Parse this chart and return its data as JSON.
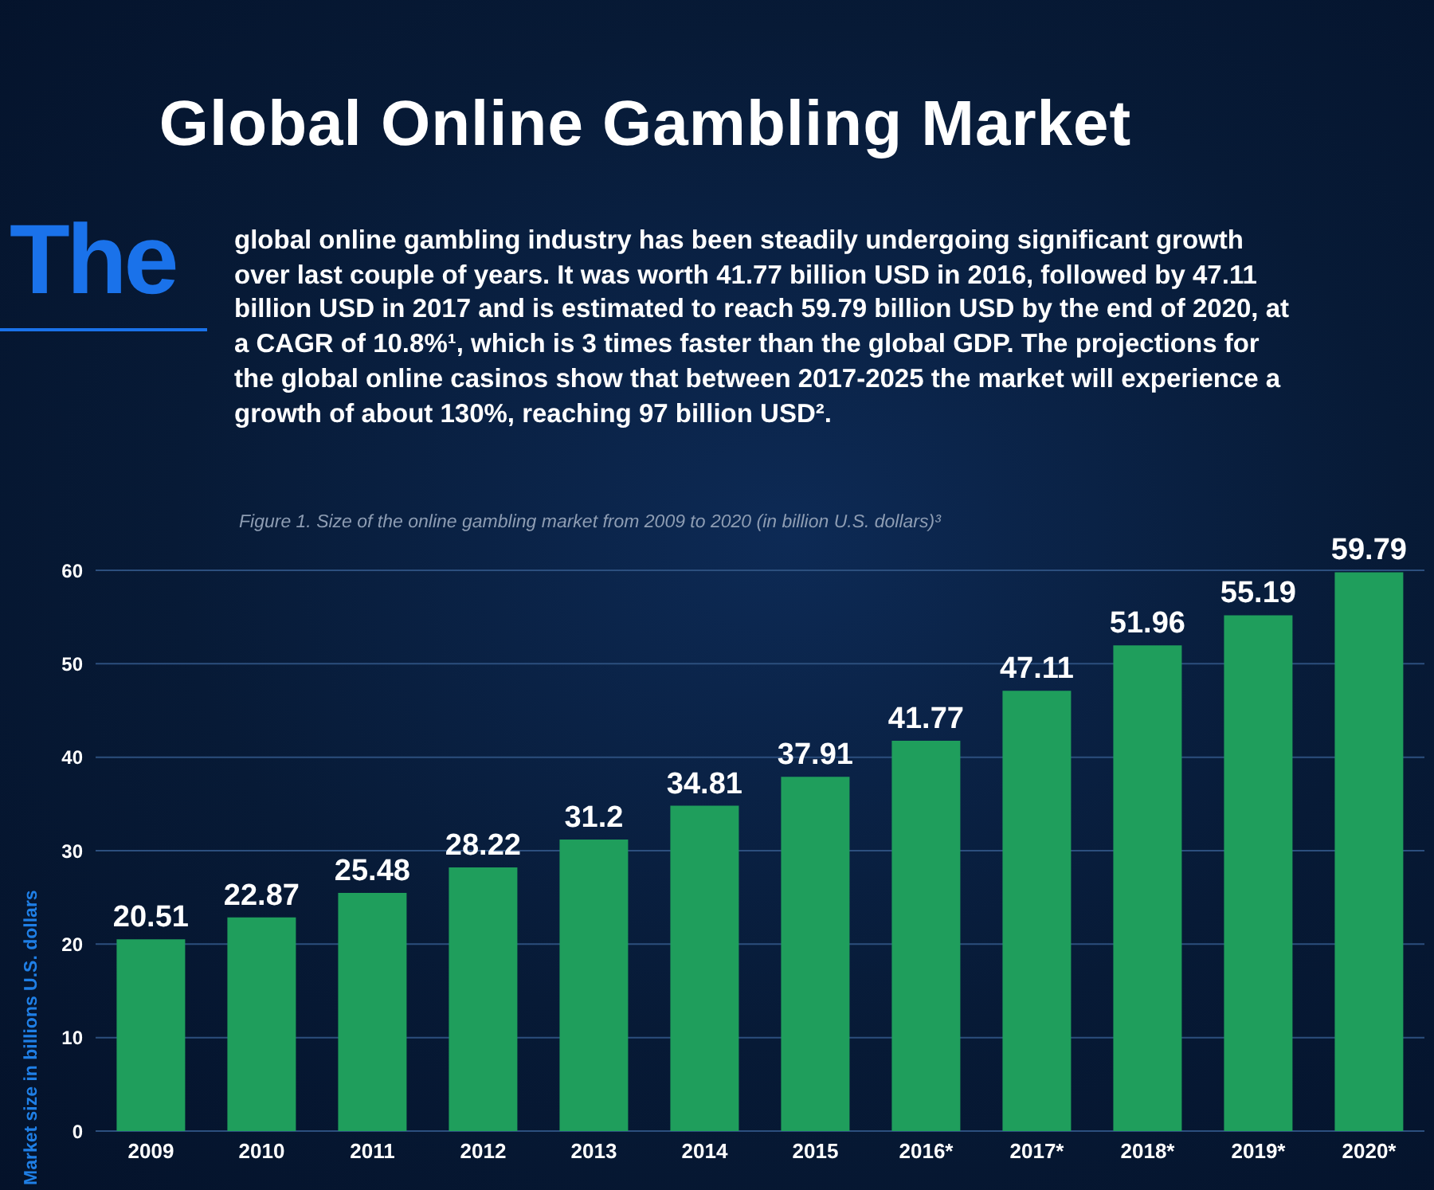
{
  "chart_data": {
    "type": "bar",
    "title": "Global Online Gambling Market",
    "subtitle": "The global online gambling industry has been steadily undergoing significant growth over last couple of years. It was worth 41.77 billion USD in 2016, followed by 47.11 billion USD in 2017 and is estimated to reach 59.79 billion USD by the end of 2020, at a CAGR of 10.8%¹, which is 3 times faster than the global GDP. The projections for the global online casinos show that between 2017-2025 the market will experience a growth of about 130%, reaching 97 billion USD².",
    "annotations": [
      "Figure 1. Size of the online gambling market from 2009 to 2020 (in billion U.S. dollars)³"
    ],
    "ylabel": "Market size in billions U.S. dollars",
    "categories": [
      "2009",
      "2010",
      "2011",
      "2012",
      "2013",
      "2014",
      "2015",
      "2016*",
      "2017*",
      "2018*",
      "2019*",
      "2020*"
    ],
    "values": [
      20.51,
      22.87,
      25.48,
      28.22,
      31.2,
      34.81,
      37.91,
      41.77,
      47.11,
      51.96,
      55.19,
      59.79
    ],
    "color": "#1f9e5c",
    "ylim": [
      0,
      60
    ],
    "yticks": [
      0,
      10,
      20,
      30,
      40,
      50,
      60
    ],
    "grid": "y",
    "data_labels": true
  }
}
